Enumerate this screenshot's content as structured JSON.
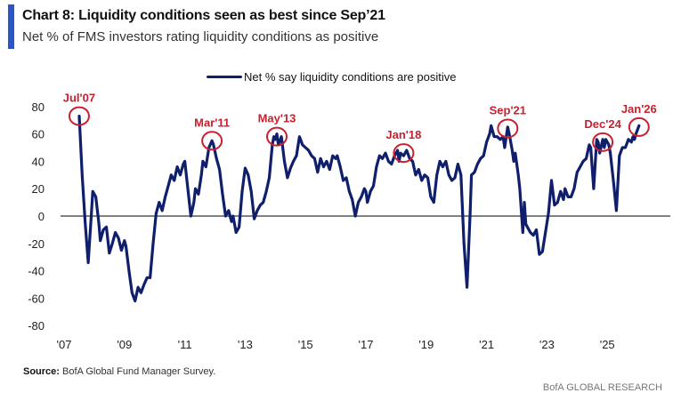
{
  "header": {
    "title": "Chart 8: Liquidity conditions seen as best since Sep’21",
    "subtitle": "Net % of FMS investors rating liquidity conditions as positive"
  },
  "footer": {
    "source_label": "Source:",
    "source_text": " BofA Global Fund Manager Survey.",
    "brand": "BofA GLOBAL RESEARCH"
  },
  "colors": {
    "title_bar": "#2a56c6",
    "series_line": "#0f1f6b",
    "annotation": "#c8202f",
    "zero_line": "#808080"
  },
  "chart_data": {
    "type": "line",
    "title": "Chart 8: Liquidity conditions seen as best since Sep’21",
    "subtitle": "Net % of FMS investors rating liquidity conditions as positive",
    "xlabel": "",
    "ylabel": "",
    "ylim": [
      -80,
      80
    ],
    "xlim": [
      2007,
      2026.7
    ],
    "yticks": [
      80,
      60,
      40,
      20,
      0,
      -20,
      -40,
      -60,
      -80
    ],
    "xticks": [
      {
        "x": 2007,
        "label": "'07"
      },
      {
        "x": 2009,
        "label": "'09"
      },
      {
        "x": 2011,
        "label": "'11"
      },
      {
        "x": 2013,
        "label": "'13"
      },
      {
        "x": 2015,
        "label": "'15"
      },
      {
        "x": 2017,
        "label": "'17"
      },
      {
        "x": 2019,
        "label": "'19"
      },
      {
        "x": 2021,
        "label": "'21"
      },
      {
        "x": 2023,
        "label": "'23"
      },
      {
        "x": 2025,
        "label": "'25"
      }
    ],
    "grid": false,
    "zero_line": true,
    "legend": {
      "position": "top-center",
      "entries": [
        "Net % say liquidity conditions are positive"
      ]
    },
    "series": [
      {
        "name": "Net % say liquidity conditions are positive",
        "points": [
          [
            2007.5,
            73
          ],
          [
            2007.6,
            30
          ],
          [
            2007.7,
            -5
          ],
          [
            2007.8,
            -34
          ],
          [
            2007.9,
            0
          ],
          [
            2007.95,
            18
          ],
          [
            2008.05,
            14
          ],
          [
            2008.15,
            -5
          ],
          [
            2008.2,
            -18
          ],
          [
            2008.3,
            -10
          ],
          [
            2008.4,
            -8
          ],
          [
            2008.5,
            -27
          ],
          [
            2008.6,
            -20
          ],
          [
            2008.7,
            -12
          ],
          [
            2008.8,
            -16
          ],
          [
            2008.9,
            -25
          ],
          [
            2009.0,
            -18
          ],
          [
            2009.05,
            -22
          ],
          [
            2009.15,
            -40
          ],
          [
            2009.25,
            -56
          ],
          [
            2009.35,
            -62
          ],
          [
            2009.45,
            -52
          ],
          [
            2009.55,
            -56
          ],
          [
            2009.65,
            -50
          ],
          [
            2009.75,
            -45
          ],
          [
            2009.85,
            -45
          ],
          [
            2009.95,
            -20
          ],
          [
            2010.05,
            2
          ],
          [
            2010.15,
            10
          ],
          [
            2010.25,
            4
          ],
          [
            2010.35,
            14
          ],
          [
            2010.45,
            22
          ],
          [
            2010.55,
            30
          ],
          [
            2010.65,
            26
          ],
          [
            2010.75,
            36
          ],
          [
            2010.85,
            30
          ],
          [
            2010.95,
            38
          ],
          [
            2011.0,
            40
          ],
          [
            2011.1,
            20
          ],
          [
            2011.2,
            0
          ],
          [
            2011.3,
            10
          ],
          [
            2011.35,
            20
          ],
          [
            2011.45,
            16
          ],
          [
            2011.55,
            30
          ],
          [
            2011.6,
            40
          ],
          [
            2011.7,
            36
          ],
          [
            2011.8,
            50
          ],
          [
            2011.9,
            55
          ],
          [
            2011.95,
            52
          ],
          [
            2012.05,
            42
          ],
          [
            2012.15,
            34
          ],
          [
            2012.25,
            16
          ],
          [
            2012.35,
            0
          ],
          [
            2012.45,
            4
          ],
          [
            2012.55,
            -4
          ],
          [
            2012.6,
            0
          ],
          [
            2012.7,
            -12
          ],
          [
            2012.8,
            -8
          ],
          [
            2012.9,
            18
          ],
          [
            2013.0,
            35
          ],
          [
            2013.1,
            30
          ],
          [
            2013.2,
            18
          ],
          [
            2013.3,
            -2
          ],
          [
            2013.4,
            4
          ],
          [
            2013.5,
            8
          ],
          [
            2013.6,
            10
          ],
          [
            2013.7,
            18
          ],
          [
            2013.8,
            28
          ],
          [
            2013.9,
            52
          ],
          [
            2013.95,
            58
          ],
          [
            2014.0,
            56
          ],
          [
            2014.05,
            60
          ],
          [
            2014.1,
            52
          ],
          [
            2014.2,
            58
          ],
          [
            2014.3,
            40
          ],
          [
            2014.4,
            28
          ],
          [
            2014.5,
            35
          ],
          [
            2014.6,
            40
          ],
          [
            2014.7,
            44
          ],
          [
            2014.8,
            58
          ],
          [
            2014.9,
            52
          ],
          [
            2015.0,
            50
          ],
          [
            2015.1,
            48
          ],
          [
            2015.2,
            44
          ],
          [
            2015.3,
            42
          ],
          [
            2015.4,
            32
          ],
          [
            2015.5,
            42
          ],
          [
            2015.6,
            36
          ],
          [
            2015.7,
            40
          ],
          [
            2015.8,
            34
          ],
          [
            2015.9,
            44
          ],
          [
            2016.0,
            42
          ],
          [
            2016.05,
            44
          ],
          [
            2016.15,
            36
          ],
          [
            2016.25,
            26
          ],
          [
            2016.35,
            28
          ],
          [
            2016.45,
            18
          ],
          [
            2016.55,
            12
          ],
          [
            2016.65,
            0
          ],
          [
            2016.75,
            10
          ],
          [
            2016.85,
            14
          ],
          [
            2016.95,
            20
          ],
          [
            2017.0,
            18
          ],
          [
            2017.05,
            10
          ],
          [
            2017.15,
            18
          ],
          [
            2017.25,
            22
          ],
          [
            2017.35,
            36
          ],
          [
            2017.45,
            44
          ],
          [
            2017.55,
            42
          ],
          [
            2017.65,
            46
          ],
          [
            2017.75,
            40
          ],
          [
            2017.85,
            38
          ],
          [
            2017.95,
            44
          ],
          [
            2018.05,
            48
          ],
          [
            2018.1,
            40
          ],
          [
            2018.15,
            46
          ],
          [
            2018.25,
            44
          ],
          [
            2018.35,
            48
          ],
          [
            2018.45,
            42
          ],
          [
            2018.55,
            40
          ],
          [
            2018.65,
            30
          ],
          [
            2018.75,
            34
          ],
          [
            2018.85,
            26
          ],
          [
            2018.95,
            30
          ],
          [
            2019.05,
            28
          ],
          [
            2019.15,
            14
          ],
          [
            2019.25,
            10
          ],
          [
            2019.35,
            30
          ],
          [
            2019.45,
            40
          ],
          [
            2019.55,
            36
          ],
          [
            2019.65,
            40
          ],
          [
            2019.75,
            30
          ],
          [
            2019.85,
            26
          ],
          [
            2019.95,
            28
          ],
          [
            2020.05,
            38
          ],
          [
            2020.15,
            30
          ],
          [
            2020.25,
            -20
          ],
          [
            2020.35,
            -52
          ],
          [
            2020.45,
            0
          ],
          [
            2020.5,
            30
          ],
          [
            2020.6,
            32
          ],
          [
            2020.7,
            38
          ],
          [
            2020.8,
            42
          ],
          [
            2020.9,
            44
          ],
          [
            2021.0,
            54
          ],
          [
            2021.1,
            60
          ],
          [
            2021.15,
            66
          ],
          [
            2021.25,
            58
          ],
          [
            2021.35,
            58
          ],
          [
            2021.45,
            56
          ],
          [
            2021.55,
            58
          ],
          [
            2021.6,
            50
          ],
          [
            2021.7,
            65
          ],
          [
            2021.75,
            60
          ],
          [
            2021.85,
            48
          ],
          [
            2021.9,
            40
          ],
          [
            2021.95,
            46
          ],
          [
            2022.05,
            30
          ],
          [
            2022.1,
            20
          ],
          [
            2022.2,
            -12
          ],
          [
            2022.25,
            10
          ],
          [
            2022.3,
            -6
          ],
          [
            2022.35,
            -8
          ],
          [
            2022.45,
            -12
          ],
          [
            2022.55,
            -14
          ],
          [
            2022.65,
            -10
          ],
          [
            2022.75,
            -28
          ],
          [
            2022.85,
            -26
          ],
          [
            2022.95,
            -12
          ],
          [
            2023.05,
            2
          ],
          [
            2023.15,
            26
          ],
          [
            2023.25,
            8
          ],
          [
            2023.35,
            10
          ],
          [
            2023.45,
            18
          ],
          [
            2023.55,
            12
          ],
          [
            2023.6,
            20
          ],
          [
            2023.7,
            14
          ],
          [
            2023.8,
            14
          ],
          [
            2023.9,
            20
          ],
          [
            2024.0,
            32
          ],
          [
            2024.1,
            36
          ],
          [
            2024.2,
            40
          ],
          [
            2024.3,
            42
          ],
          [
            2024.4,
            52
          ],
          [
            2024.45,
            50
          ],
          [
            2024.55,
            20
          ],
          [
            2024.65,
            56
          ],
          [
            2024.7,
            54
          ],
          [
            2024.75,
            46
          ],
          [
            2024.85,
            56
          ],
          [
            2024.9,
            50
          ],
          [
            2024.95,
            56
          ],
          [
            2025.05,
            52
          ],
          [
            2025.1,
            46
          ],
          [
            2025.2,
            26
          ],
          [
            2025.3,
            4
          ],
          [
            2025.4,
            44
          ],
          [
            2025.5,
            50
          ],
          [
            2025.6,
            50
          ],
          [
            2025.7,
            56
          ],
          [
            2025.8,
            54
          ],
          [
            2025.85,
            58
          ],
          [
            2025.9,
            56
          ],
          [
            2025.95,
            60
          ],
          [
            2026.05,
            66
          ]
        ]
      }
    ],
    "annotations": [
      {
        "label": "Jul'07",
        "x": 2007.5,
        "y": 73
      },
      {
        "label": "Mar'11",
        "x": 2011.9,
        "y": 55
      },
      {
        "label": "May'13",
        "x": 2014.05,
        "y": 58
      },
      {
        "label": "Jan'18",
        "x": 2018.25,
        "y": 46
      },
      {
        "label": "Sep'21",
        "x": 2021.7,
        "y": 64
      },
      {
        "label": "Dec'24",
        "x": 2024.85,
        "y": 54
      },
      {
        "label": "Jan'26",
        "x": 2026.05,
        "y": 65
      }
    ]
  }
}
